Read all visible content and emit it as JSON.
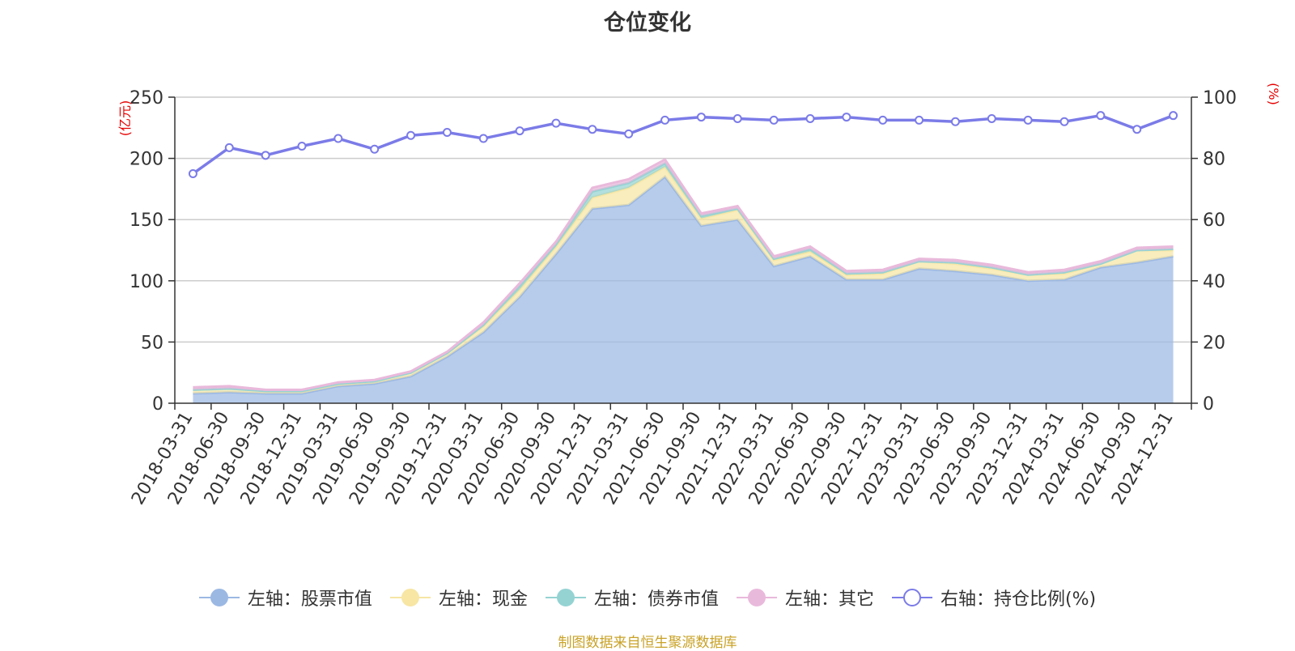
{
  "chart_data": {
    "type": "area",
    "title": "仓位变化",
    "left_axis_unit": "(亿元)",
    "right_axis_unit": "(%)",
    "ylim_left": [
      0,
      250
    ],
    "ylim_right": [
      0,
      100
    ],
    "yticks_left": [
      0,
      50,
      100,
      150,
      200,
      250
    ],
    "yticks_right": [
      0,
      20,
      40,
      60,
      80,
      100
    ],
    "grid": true,
    "legend_position": "bottom",
    "categories": [
      "2018-03-31",
      "2018-06-30",
      "2018-09-30",
      "2018-12-31",
      "2019-03-31",
      "2019-06-30",
      "2019-09-30",
      "2019-12-31",
      "2020-03-31",
      "2020-06-30",
      "2020-09-30",
      "2020-12-31",
      "2021-03-31",
      "2021-06-30",
      "2021-09-30",
      "2021-12-31",
      "2022-03-31",
      "2022-06-30",
      "2022-09-30",
      "2022-12-31",
      "2023-03-31",
      "2023-06-30",
      "2023-09-30",
      "2023-12-31",
      "2024-03-31",
      "2024-06-30",
      "2024-09-30",
      "2024-12-31"
    ],
    "stacked_series": [
      {
        "name": "左轴：股票市值",
        "color": "#9bb8e3",
        "values": [
          8,
          9,
          8,
          8,
          14,
          16,
          22,
          38,
          58,
          87,
          122,
          159,
          162,
          185,
          145,
          150,
          112,
          120,
          101,
          101,
          110,
          108,
          105,
          100,
          101,
          111,
          115,
          120
        ]
      },
      {
        "name": "左轴：现金",
        "color": "#f7e6a4",
        "values": [
          3,
          3,
          2,
          2,
          2,
          2,
          3,
          3,
          5,
          6,
          6,
          9,
          14,
          8,
          6,
          8,
          5,
          4,
          4,
          5,
          6,
          6,
          5,
          5,
          5,
          3,
          10,
          5
        ]
      },
      {
        "name": "左轴：债券市值",
        "color": "#95d3d3",
        "values": [
          0,
          0,
          0,
          0,
          0,
          0,
          0,
          0,
          1,
          3,
          2,
          5,
          4,
          3,
          2,
          1,
          1,
          2,
          1,
          1,
          0,
          1,
          1,
          0,
          1,
          0,
          0,
          1
        ]
      },
      {
        "name": "左轴：其它",
        "color": "#e9b9db",
        "values": [
          2,
          2,
          1,
          1,
          1,
          1,
          1,
          1,
          2,
          2,
          2,
          3,
          3,
          3,
          2,
          2,
          2,
          2,
          2,
          2,
          2,
          2,
          2,
          2,
          2,
          2,
          2,
          2
        ]
      }
    ],
    "line_series": {
      "name": "右轴：持仓比例(%)",
      "color": "#7b7be8",
      "values": [
        75,
        83.5,
        81,
        84,
        86.5,
        83,
        87.5,
        88.5,
        86.5,
        89,
        91.5,
        89.5,
        88,
        92.5,
        93.5,
        93,
        92.5,
        93,
        93.5,
        92.5,
        92.5,
        92,
        93,
        92.5,
        92,
        94,
        89.5,
        94
      ]
    }
  },
  "footer": {
    "source": "制图数据来自恒生聚源数据库"
  }
}
